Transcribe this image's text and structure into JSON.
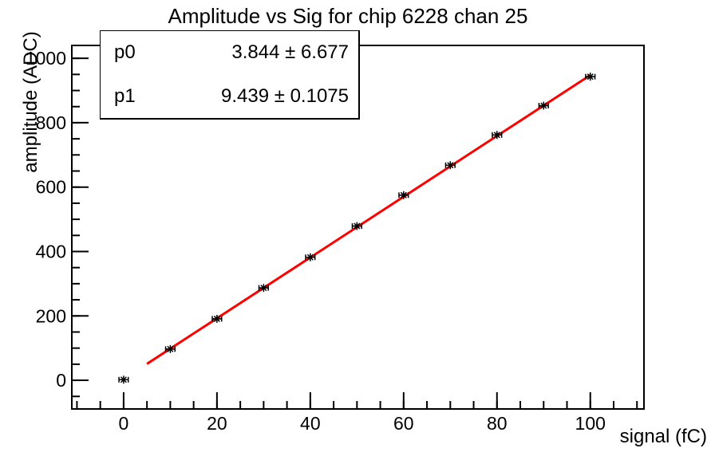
{
  "stats": {
    "rows": [
      {
        "name": "p0",
        "value": "3.844 ± 6.677"
      },
      {
        "name": "p1",
        "value": "9.439 ± 0.1075"
      }
    ]
  },
  "colors": {
    "background": "#ffffff",
    "frame": "#000000",
    "text": "#000000",
    "marker": "#000000",
    "fit_line": "#ff0000"
  },
  "chart_data": {
    "type": "scatter",
    "title": "Amplitude vs Sig for chip 6228 chan 25",
    "xlabel": "signal (fC)",
    "ylabel": "amplitude (ADC)",
    "x": [
      0,
      10,
      20,
      30,
      40,
      50,
      60,
      70,
      80,
      90,
      100
    ],
    "y": [
      2,
      97,
      191,
      287,
      382,
      479,
      575,
      668,
      762,
      853,
      943
    ],
    "x_err": [
      1,
      1,
      1,
      1,
      1,
      1,
      1,
      1,
      1,
      1,
      1
    ],
    "fit": {
      "name": "linear",
      "p0": 3.844,
      "p1": 9.439,
      "x_start": 5,
      "x_end": 100
    },
    "x_range": [
      -11.1,
      111.5
    ],
    "y_range": [
      -89,
      1040
    ],
    "x_major_ticks": [
      0,
      20,
      40,
      60,
      80,
      100
    ],
    "x_minor_step": 5,
    "y_major_ticks": [
      0,
      200,
      400,
      600,
      800,
      1000
    ],
    "y_minor_step": 50,
    "grid": false,
    "legend_position": "none",
    "marker_style": "asterisk-8-with-x-error-bars"
  }
}
